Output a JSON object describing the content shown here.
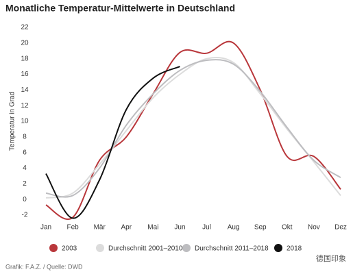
{
  "chart_data": {
    "type": "line",
    "title": "Monatliche Temperatur-Mittelwerte in Deutschland",
    "y_label": "Temperatur in Grad",
    "categories": [
      "Jan",
      "Feb",
      "Mär",
      "Apr",
      "Mai",
      "Jun",
      "Jul",
      "Aug",
      "Sep",
      "Okt",
      "Nov",
      "Dez"
    ],
    "series": [
      {
        "name": "2003",
        "color": "#b9373b",
        "values": [
          -0.7,
          -2.3,
          5,
          8,
          13.5,
          18.8,
          18.7,
          20,
          14,
          5.5,
          5.5,
          1.3
        ]
      },
      {
        "name": "Durchschnitt 2001–2010",
        "color": "#dcdcdc",
        "values": [
          0.2,
          0.8,
          4.5,
          8.8,
          13,
          16,
          18,
          17.5,
          13.5,
          9,
          4.8,
          0.5
        ]
      },
      {
        "name": "Durchschnitt 2011–2018",
        "color": "#bdbdc0",
        "values": [
          0.8,
          0.5,
          4,
          9.5,
          13.5,
          16.5,
          17.8,
          17.3,
          13.8,
          9.2,
          5,
          2.8
        ]
      },
      {
        "name": "2018",
        "color": "#111111",
        "values": [
          3.3,
          -2.4,
          2.5,
          11.5,
          15.5,
          17,
          null,
          null,
          null,
          null,
          null,
          null
        ]
      }
    ],
    "ylim": [
      -2,
      22
    ],
    "yticks": [
      -2,
      0,
      2,
      4,
      6,
      8,
      10,
      12,
      14,
      16,
      18,
      20,
      22
    ],
    "legend": "bottom",
    "source": "Grafik: F.A.Z. / Quelle: DWD",
    "watermark": "德国印象"
  }
}
